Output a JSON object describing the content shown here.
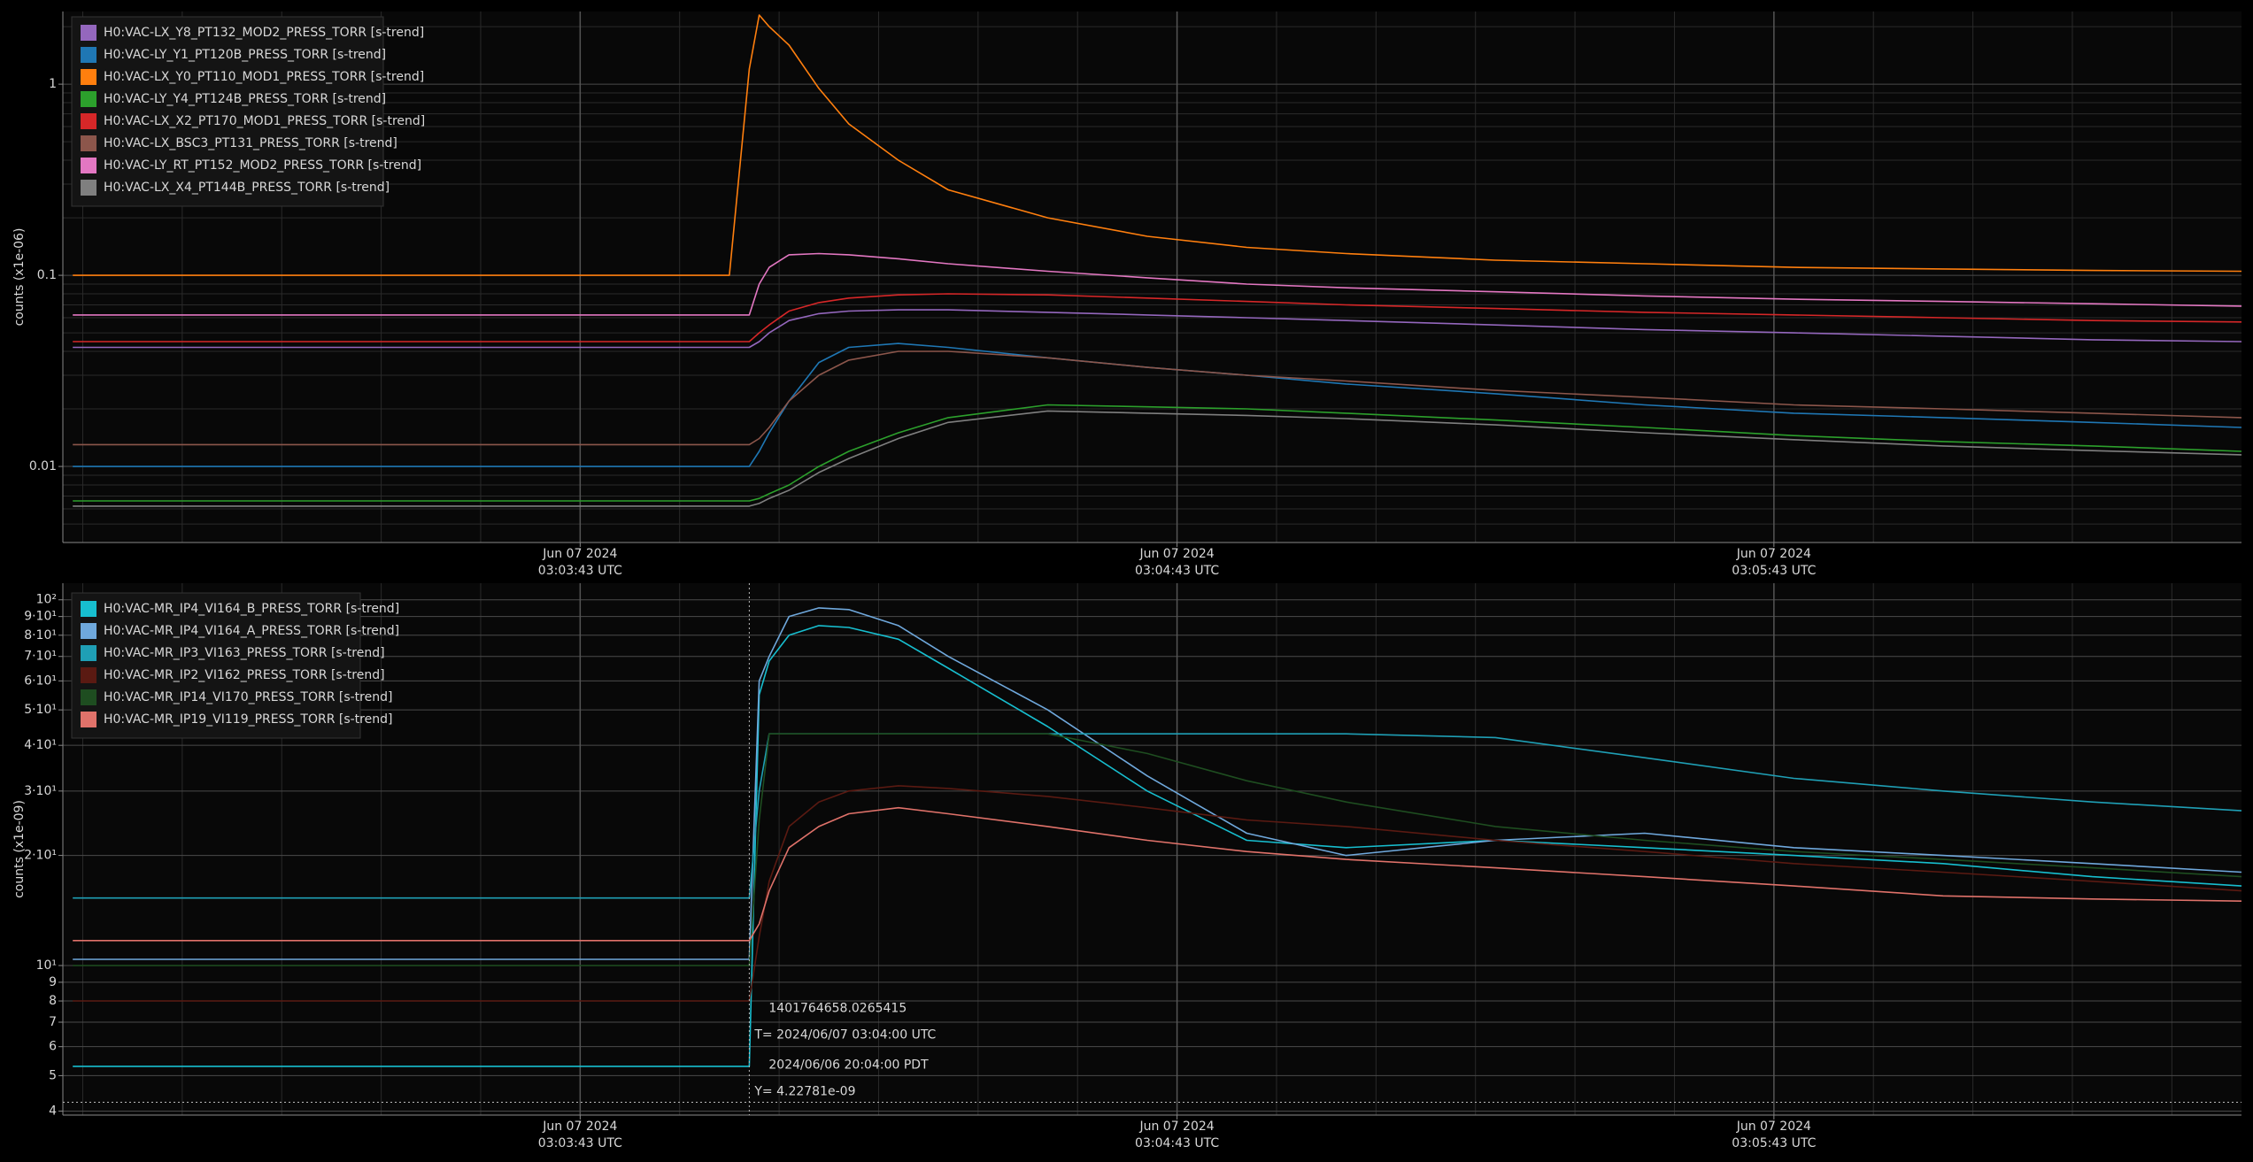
{
  "chart_data": [
    {
      "type": "line",
      "y_label": "counts (x1e-06)",
      "log_y": true,
      "grid": true,
      "x": [
        "2024-06-07T03:02:52Z",
        "2024-06-07T03:03:10Z",
        "2024-06-07T03:03:30Z",
        "2024-06-07T03:03:50Z",
        "2024-06-07T03:03:58Z",
        "2024-06-07T03:04:00Z",
        "2024-06-07T03:04:01Z",
        "2024-06-07T03:04:02Z",
        "2024-06-07T03:04:04Z",
        "2024-06-07T03:04:07Z",
        "2024-06-07T03:04:10Z",
        "2024-06-07T03:04:15Z",
        "2024-06-07T03:04:20Z",
        "2024-06-07T03:04:30Z",
        "2024-06-07T03:04:40Z",
        "2024-06-07T03:04:50Z",
        "2024-06-07T03:05:00Z",
        "2024-06-07T03:05:15Z",
        "2024-06-07T03:05:30Z",
        "2024-06-07T03:05:45Z",
        "2024-06-07T03:06:00Z",
        "2024-06-07T03:06:15Z",
        "2024-06-07T03:06:30Z"
      ],
      "xlim": [
        "2024-06-07T03:02:51Z",
        "2024-06-07T03:06:30Z"
      ],
      "xticks": [
        {
          "value": "2024-06-07T03:03:43Z",
          "label": [
            "Jun 07 2024",
            "03:03:43 UTC"
          ]
        },
        {
          "value": "2024-06-07T03:04:43Z",
          "label": [
            "Jun 07 2024",
            "03:04:43 UTC"
          ]
        },
        {
          "value": "2024-06-07T03:05:43Z",
          "label": [
            "Jun 07 2024",
            "03:05:43 UTC"
          ]
        }
      ],
      "minor_xticks": [
        "2024-06-07T03:02:53Z",
        "2024-06-07T03:03:03Z",
        "2024-06-07T03:03:13Z",
        "2024-06-07T03:03:23Z",
        "2024-06-07T03:03:33Z",
        "2024-06-07T03:03:53Z",
        "2024-06-07T03:04:03Z",
        "2024-06-07T03:04:13Z",
        "2024-06-07T03:04:23Z",
        "2024-06-07T03:04:33Z",
        "2024-06-07T03:04:53Z",
        "2024-06-07T03:05:03Z",
        "2024-06-07T03:05:13Z",
        "2024-06-07T03:05:23Z",
        "2024-06-07T03:05:33Z",
        "2024-06-07T03:05:53Z",
        "2024-06-07T03:06:03Z",
        "2024-06-07T03:06:13Z",
        "2024-06-07T03:06:23Z"
      ],
      "ylim": [
        0.004,
        2.4
      ],
      "yticks": [
        0.01,
        0.1,
        1
      ],
      "minor_yticks": [
        0.005,
        0.006,
        0.007,
        0.008,
        0.009,
        0.02,
        0.03,
        0.04,
        0.05,
        0.06,
        0.07,
        0.08,
        0.09,
        0.2,
        0.3,
        0.4,
        0.5,
        0.6,
        0.7,
        0.8,
        0.9,
        2
      ],
      "series": [
        {
          "name": "H0:VAC-LX_Y8_PT132_MOD2_PRESS_TORR [s-trend]",
          "color": "#9467bd",
          "values": [
            0.042,
            0.042,
            0.042,
            0.042,
            0.042,
            0.042,
            0.045,
            0.05,
            0.058,
            0.063,
            0.065,
            0.066,
            0.066,
            0.064,
            0.062,
            0.06,
            0.058,
            0.055,
            0.052,
            0.05,
            0.048,
            0.046,
            0.045
          ]
        },
        {
          "name": "H0:VAC-LY_Y1_PT120B_PRESS_TORR [s-trend]",
          "color": "#1f77b4",
          "values": [
            0.01,
            0.01,
            0.01,
            0.01,
            0.01,
            0.01,
            0.012,
            0.015,
            0.022,
            0.035,
            0.042,
            0.044,
            0.042,
            0.037,
            0.033,
            0.03,
            0.027,
            0.024,
            0.021,
            0.019,
            0.018,
            0.017,
            0.016
          ]
        },
        {
          "name": "H0:VAC-LX_Y0_PT110_MOD1_PRESS_TORR [s-trend]",
          "color": "#ff7f0e",
          "values": [
            0.1,
            0.1,
            0.1,
            0.1,
            0.1,
            1.2,
            2.3,
            2.0,
            1.6,
            0.95,
            0.62,
            0.4,
            0.28,
            0.2,
            0.16,
            0.14,
            0.13,
            0.12,
            0.115,
            0.11,
            0.108,
            0.106,
            0.105
          ]
        },
        {
          "name": "H0:VAC-LY_Y4_PT124B_PRESS_TORR [s-trend]",
          "color": "#2ca02c",
          "values": [
            0.0066,
            0.0066,
            0.0066,
            0.0066,
            0.0066,
            0.0066,
            0.0068,
            0.0072,
            0.008,
            0.01,
            0.012,
            0.015,
            0.018,
            0.021,
            0.0205,
            0.02,
            0.019,
            0.0175,
            0.016,
            0.0145,
            0.0135,
            0.0128,
            0.012
          ]
        },
        {
          "name": "H0:VAC-LX_X2_PT170_MOD1_PRESS_TORR [s-trend]",
          "color": "#d62728",
          "values": [
            0.045,
            0.045,
            0.045,
            0.045,
            0.045,
            0.045,
            0.05,
            0.055,
            0.065,
            0.072,
            0.076,
            0.079,
            0.08,
            0.079,
            0.076,
            0.073,
            0.07,
            0.067,
            0.064,
            0.062,
            0.06,
            0.058,
            0.057
          ]
        },
        {
          "name": "H0:VAC-LX_BSC3_PT131_PRESS_TORR [s-trend]",
          "color": "#8c564b",
          "values": [
            0.013,
            0.013,
            0.013,
            0.013,
            0.013,
            0.013,
            0.014,
            0.016,
            0.022,
            0.03,
            0.036,
            0.04,
            0.04,
            0.037,
            0.033,
            0.03,
            0.028,
            0.025,
            0.023,
            0.021,
            0.02,
            0.019,
            0.018
          ]
        },
        {
          "name": "H0:VAC-LY_RT_PT152_MOD2_PRESS_TORR [s-trend]",
          "color": "#e377c2",
          "values": [
            0.062,
            0.062,
            0.062,
            0.062,
            0.062,
            0.062,
            0.09,
            0.11,
            0.128,
            0.13,
            0.128,
            0.122,
            0.115,
            0.105,
            0.097,
            0.09,
            0.086,
            0.082,
            0.078,
            0.075,
            0.073,
            0.071,
            0.069
          ]
        },
        {
          "name": "H0:VAC-LX_X4_PT144B_PRESS_TORR [s-trend]",
          "color": "#7f7f7f",
          "values": [
            0.0062,
            0.0062,
            0.0062,
            0.0062,
            0.0062,
            0.0062,
            0.0064,
            0.0068,
            0.0075,
            0.0093,
            0.011,
            0.014,
            0.017,
            0.0195,
            0.019,
            0.0185,
            0.0178,
            0.0165,
            0.015,
            0.0138,
            0.0128,
            0.0121,
            0.0115
          ]
        }
      ]
    },
    {
      "type": "line",
      "y_label": "counts (x1e-09)",
      "log_y": true,
      "grid": true,
      "x": [
        "2024-06-07T03:02:52Z",
        "2024-06-07T03:03:10Z",
        "2024-06-07T03:03:30Z",
        "2024-06-07T03:03:50Z",
        "2024-06-07T03:03:58Z",
        "2024-06-07T03:04:00Z",
        "2024-06-07T03:04:01Z",
        "2024-06-07T03:04:02Z",
        "2024-06-07T03:04:04Z",
        "2024-06-07T03:04:07Z",
        "2024-06-07T03:04:10Z",
        "2024-06-07T03:04:15Z",
        "2024-06-07T03:04:20Z",
        "2024-06-07T03:04:30Z",
        "2024-06-07T03:04:40Z",
        "2024-06-07T03:04:50Z",
        "2024-06-07T03:05:00Z",
        "2024-06-07T03:05:15Z",
        "2024-06-07T03:05:30Z",
        "2024-06-07T03:05:45Z",
        "2024-06-07T03:06:00Z",
        "2024-06-07T03:06:15Z",
        "2024-06-07T03:06:30Z"
      ],
      "xlim": [
        "2024-06-07T03:02:51Z",
        "2024-06-07T03:06:30Z"
      ],
      "xticks": [
        {
          "value": "2024-06-07T03:03:43Z",
          "label": [
            "Jun 07 2024",
            "03:03:43 UTC"
          ]
        },
        {
          "value": "2024-06-07T03:04:43Z",
          "label": [
            "Jun 07 2024",
            "03:04:43 UTC"
          ]
        },
        {
          "value": "2024-06-07T03:05:43Z",
          "label": [
            "Jun 07 2024",
            "03:05:43 UTC"
          ]
        }
      ],
      "minor_xticks": [
        "2024-06-07T03:02:53Z",
        "2024-06-07T03:03:03Z",
        "2024-06-07T03:03:13Z",
        "2024-06-07T03:03:23Z",
        "2024-06-07T03:03:33Z",
        "2024-06-07T03:03:53Z",
        "2024-06-07T03:04:03Z",
        "2024-06-07T03:04:13Z",
        "2024-06-07T03:04:23Z",
        "2024-06-07T03:04:33Z",
        "2024-06-07T03:04:53Z",
        "2024-06-07T03:05:03Z",
        "2024-06-07T03:05:13Z",
        "2024-06-07T03:05:23Z",
        "2024-06-07T03:05:33Z",
        "2024-06-07T03:05:53Z",
        "2024-06-07T03:06:03Z",
        "2024-06-07T03:06:13Z",
        "2024-06-07T03:06:23Z"
      ],
      "ylim": [
        3.9,
        111
      ],
      "yticks": [
        4,
        5,
        6,
        7,
        8,
        9,
        {
          "value": 10,
          "label": "10¹"
        },
        {
          "value": 20,
          "label": "2·10¹"
        },
        {
          "value": 30,
          "label": "3·10¹"
        },
        {
          "value": 40,
          "label": "4·10¹"
        },
        {
          "value": 50,
          "label": "5·10¹"
        },
        {
          "value": 60,
          "label": "6·10¹"
        },
        {
          "value": 70,
          "label": "7·10¹"
        },
        {
          "value": 80,
          "label": "8·10¹"
        },
        {
          "value": 90,
          "label": "9·10¹"
        },
        {
          "value": 100,
          "label": "10²"
        }
      ],
      "series": [
        {
          "name": "H0:VAC-MR_IP4_VI164_B_PRESS_TORR [s-trend]",
          "color": "#17becf",
          "values": [
            5.3,
            5.3,
            5.3,
            5.3,
            5.3,
            5.3,
            55,
            68,
            80,
            85,
            84,
            78,
            65,
            45,
            30,
            22,
            21,
            22,
            21,
            20,
            19,
            17.5,
            16.5
          ]
        },
        {
          "name": "H0:VAC-MR_IP4_VI164_A_PRESS_TORR [s-trend]",
          "color": "#6fa8dc",
          "values": [
            10.4,
            10.4,
            10.4,
            10.4,
            10.4,
            10.4,
            60,
            70,
            90,
            95,
            94,
            85,
            70,
            50,
            33,
            23,
            20,
            22,
            23,
            21,
            20,
            19,
            18
          ]
        },
        {
          "name": "H0:VAC-MR_IP3_VI163_PRESS_TORR [s-trend]",
          "color": "#1f9fb5",
          "values": [
            15.3,
            15.3,
            15.3,
            15.3,
            15.3,
            15.3,
            30,
            43,
            43,
            43,
            43,
            43,
            43,
            43,
            43,
            43,
            43,
            42,
            37,
            32.5,
            30,
            28,
            26.5
          ]
        },
        {
          "name": "H0:VAC-MR_IP2_VI162_PRESS_TORR [s-trend]",
          "color": "#5a1a12",
          "values": [
            8,
            8,
            8,
            8,
            8,
            8,
            12,
            17,
            24,
            28,
            30,
            31,
            30.5,
            29,
            27,
            25,
            24,
            22,
            20.5,
            19,
            18,
            17,
            16
          ]
        },
        {
          "name": "H0:VAC-MR_IP14_VI170_PRESS_TORR [s-trend]",
          "color": "#1e4d20",
          "values": [
            10,
            10,
            10,
            10,
            10,
            10,
            25,
            43,
            43,
            43,
            43,
            43,
            43,
            43,
            38,
            32,
            28,
            24,
            22,
            20.5,
            19.5,
            18.5,
            17.5
          ]
        },
        {
          "name": "H0:VAC-MR_IP19_VI119_PRESS_TORR [s-trend]",
          "color": "#e0726a",
          "values": [
            11.7,
            11.7,
            11.7,
            11.7,
            11.7,
            11.7,
            13,
            16,
            21,
            24,
            26,
            27,
            26,
            24,
            22,
            20.5,
            19.5,
            18.5,
            17.5,
            16.5,
            15.5,
            15.2,
            15
          ]
        }
      ],
      "cursor": {
        "x": "2024-06-07T03:04:00Z",
        "y": 4.22781,
        "texts": [
          "1401764658.0265415",
          "T= 2024/06/07 03:04:00 UTC",
          "2024/06/06 20:04:00 PDT",
          "Y= 4.22781e-09"
        ]
      }
    }
  ]
}
